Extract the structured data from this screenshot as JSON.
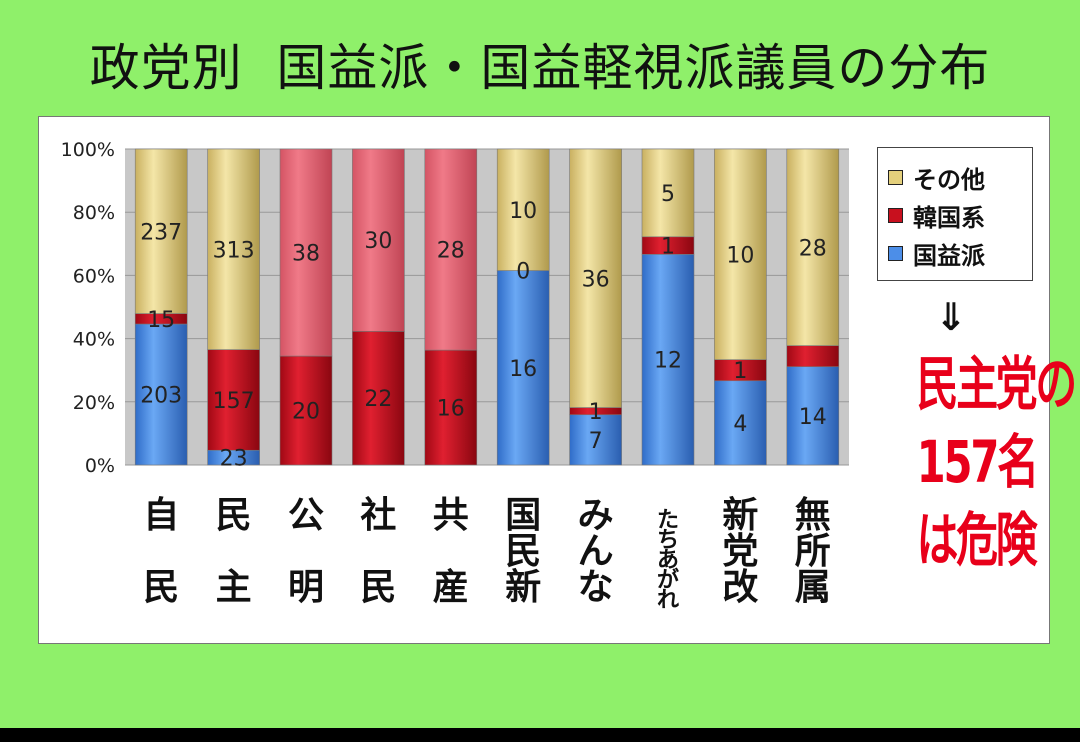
{
  "title": "政党別  国益派・国益軽視派議員の分布",
  "legend": [
    {
      "label": "その他",
      "color": "#e4d07c"
    },
    {
      "label": "韓国系",
      "color": "#c8101e"
    },
    {
      "label": "国益派",
      "color": "#4c8ee8"
    }
  ],
  "arrow": "⇓",
  "warning": {
    "line1": "民主党の",
    "line2": "157名",
    "line3": "は危険"
  },
  "colors": {
    "background": "#8ff06a",
    "gold": "#e4d07c",
    "red": "#c8101e",
    "pink": "#e06070",
    "blue": "#4c8ee8",
    "warning": "#e8001a"
  },
  "chart_data": {
    "type": "bar",
    "stacked": "percent",
    "y_tick_labels": [
      "0%",
      "20%",
      "40%",
      "60%",
      "80%",
      "100%"
    ],
    "ylim": [
      0,
      100
    ],
    "categories": [
      {
        "chars": [
          "自",
          "",
          "民"
        ]
      },
      {
        "chars": [
          "民",
          "",
          "主"
        ]
      },
      {
        "chars": [
          "公",
          "",
          "明"
        ]
      },
      {
        "chars": [
          "社",
          "",
          "民"
        ]
      },
      {
        "chars": [
          "共",
          "",
          "産"
        ]
      },
      {
        "chars": [
          "国",
          "民",
          "新"
        ]
      },
      {
        "chars": [
          "み",
          "ん",
          "な"
        ]
      },
      {
        "chars": [
          "た",
          "ち",
          "あ",
          "が",
          "れ"
        ]
      },
      {
        "chars": [
          "新",
          "党",
          "改"
        ]
      },
      {
        "chars": [
          "無",
          "所",
          "属"
        ]
      }
    ],
    "series": [
      {
        "name": "国益派",
        "values": [
          203,
          23,
          0,
          0,
          0,
          16,
          7,
          12,
          4,
          14
        ]
      },
      {
        "name": "韓国系",
        "values": [
          15,
          157,
          20,
          22,
          16,
          0,
          1,
          1,
          1,
          3
        ]
      },
      {
        "name": "その他",
        "values": [
          237,
          313,
          38,
          30,
          28,
          10,
          36,
          5,
          10,
          28
        ]
      }
    ],
    "hidden_labels": [
      [
        false,
        false,
        true,
        true,
        true,
        false,
        false,
        false,
        false,
        false
      ],
      [
        false,
        false,
        false,
        false,
        false,
        false,
        false,
        false,
        false,
        true
      ],
      [
        false,
        false,
        false,
        false,
        false,
        false,
        false,
        false,
        false,
        false
      ]
    ]
  }
}
